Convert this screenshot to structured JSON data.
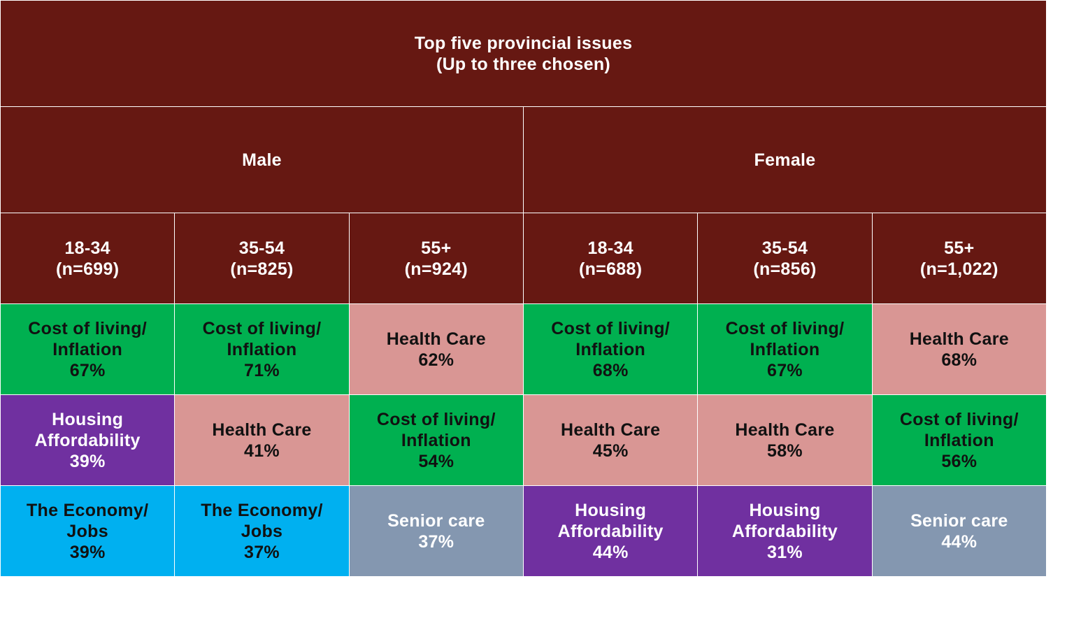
{
  "chart_data": {
    "type": "table",
    "title": "Top five provincial issues\n(Up to three chosen)",
    "genders": [
      "Male",
      "Female"
    ],
    "columns": [
      {
        "label": "18-34\n(n=699)"
      },
      {
        "label": "35-54\n(n=825)"
      },
      {
        "label": "55+\n(n=924)"
      },
      {
        "label": "18-34\n(n=688)"
      },
      {
        "label": "35-54\n(n=856)"
      },
      {
        "label": "55+\n(n=1,022)"
      }
    ],
    "rows": [
      [
        {
          "issue": "Cost of living/\nInflation",
          "value": "67%"
        },
        {
          "issue": "Cost of living/\nInflation",
          "value": "71%"
        },
        {
          "issue": "Health Care",
          "value": "62%"
        },
        {
          "issue": "Cost of living/\nInflation",
          "value": "68%"
        },
        {
          "issue": "Cost of living/\nInflation",
          "value": "67%"
        },
        {
          "issue": "Health Care",
          "value": "68%"
        }
      ],
      [
        {
          "issue": "Housing\nAffordability",
          "value": "39%"
        },
        {
          "issue": "Health Care",
          "value": "41%"
        },
        {
          "issue": "Cost of living/\nInflation",
          "value": "54%"
        },
        {
          "issue": "Health Care",
          "value": "45%"
        },
        {
          "issue": "Health Care",
          "value": "58%"
        },
        {
          "issue": "Cost of living/\nInflation",
          "value": "56%"
        }
      ],
      [
        {
          "issue": "The Economy/\nJobs",
          "value": "39%"
        },
        {
          "issue": "The Economy/\nJobs",
          "value": "37%"
        },
        {
          "issue": "Senior care",
          "value": "37%"
        },
        {
          "issue": "Housing\nAffordability",
          "value": "44%"
        },
        {
          "issue": "Housing\nAffordability",
          "value": "31%"
        },
        {
          "issue": "Senior care",
          "value": "44%"
        }
      ]
    ]
  },
  "colors": {
    "header": "#661812",
    "border": "#ffffff",
    "issues": {
      "Cost of living/\nInflation": {
        "bg": "#00b050",
        "text": "#111111"
      },
      "Health Care": {
        "bg": "#d99694",
        "text": "#111111"
      },
      "Housing\nAffordability": {
        "bg": "#7030a0",
        "text": "#ffffff"
      },
      "The Economy/\nJobs": {
        "bg": "#00b0f0",
        "text": "#111111"
      },
      "Senior care": {
        "bg": "#8497b0",
        "text": "#ffffff"
      }
    }
  }
}
